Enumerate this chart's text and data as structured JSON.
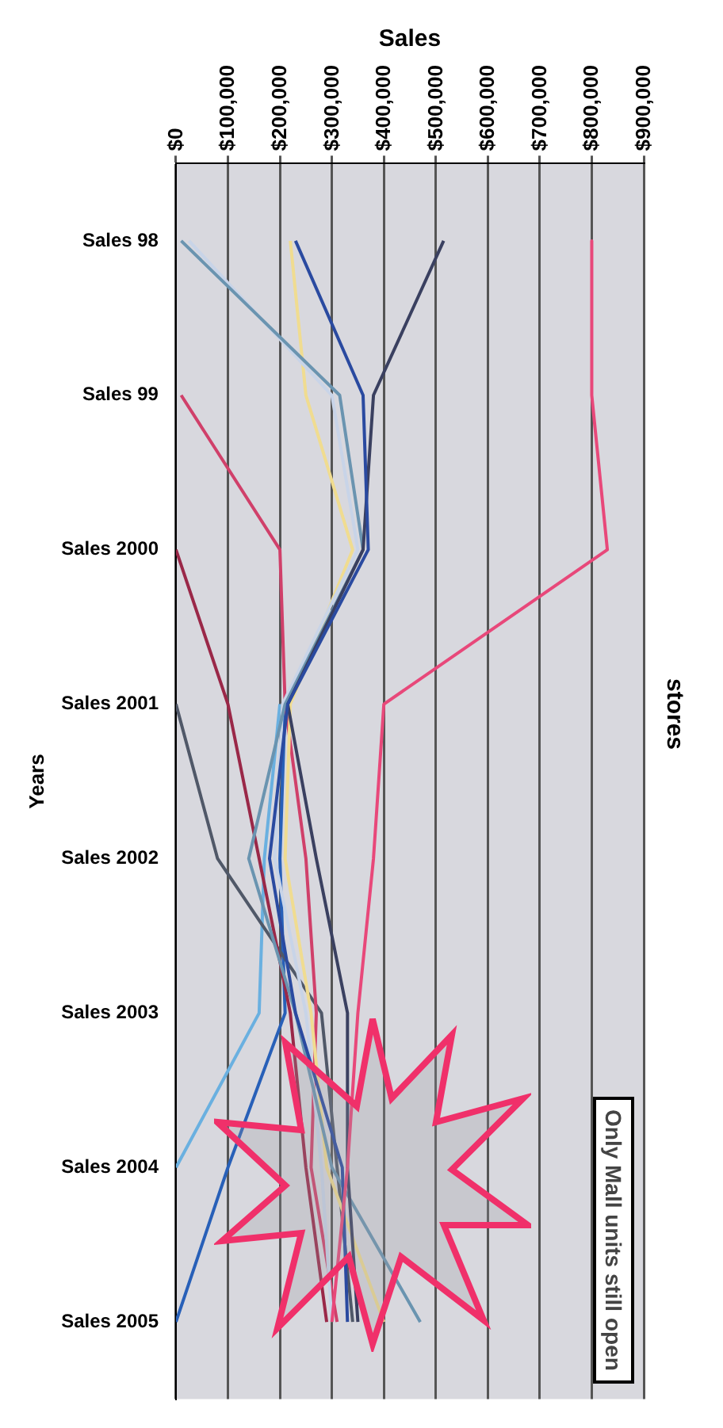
{
  "chart_data": {
    "type": "line",
    "title": "stores",
    "xlabel": "Sales",
    "ylabel": "Years",
    "orientation": "horizontal",
    "grid": "x",
    "legend": false,
    "categories": [
      "Sales 98",
      "Sales 99",
      "Sales 2000",
      "Sales 2001",
      "Sales 2002",
      "Sales 2003",
      "Sales 2004",
      "Sales 2005"
    ],
    "xlim": [
      0,
      900000
    ],
    "xticks": [
      {
        "value": 0,
        "label": "$0"
      },
      {
        "value": 100000,
        "label": "$100,000"
      },
      {
        "value": 200000,
        "label": "$200,000"
      },
      {
        "value": 300000,
        "label": "$300,000"
      },
      {
        "value": 400000,
        "label": "$400,000"
      },
      {
        "value": 500000,
        "label": "$500,000"
      },
      {
        "value": 600000,
        "label": "$600,000"
      },
      {
        "value": 700000,
        "label": "$700,000"
      },
      {
        "value": 800000,
        "label": "$800,000"
      },
      {
        "value": 900000,
        "label": "$900,000"
      }
    ],
    "annotations": [
      "Only Mall units still open"
    ],
    "series": [
      {
        "color": "#e8487a",
        "values": [
          800000,
          800000,
          830000,
          400000,
          380000,
          350000,
          330000,
          300000
        ]
      },
      {
        "color": "#2a4aa0",
        "values": [
          230000,
          360000,
          370000,
          215000,
          180000,
          230000,
          320000,
          330000
        ]
      },
      {
        "color": "#3a4060",
        "values": [
          515000,
          380000,
          360000,
          215000,
          270000,
          330000,
          330000,
          350000
        ]
      },
      {
        "color": "#6a94b0",
        "values": [
          10000,
          315000,
          360000,
          210000,
          140000,
          230000,
          300000,
          470000
        ]
      },
      {
        "color": "#c8d4e8",
        "values": [
          25000,
          300000,
          350000,
          205000,
          190000,
          250000,
          280000,
          300000
        ]
      },
      {
        "color": "#f0dc90",
        "values": [
          220000,
          250000,
          340000,
          220000,
          210000,
          260000,
          290000,
          400000
        ]
      },
      {
        "color": "#d0406a",
        "values": [
          null,
          10000,
          200000,
          210000,
          250000,
          270000,
          260000,
          310000
        ]
      },
      {
        "color": "#9a2848",
        "values": [
          null,
          null,
          0,
          100000,
          160000,
          220000,
          250000,
          290000
        ]
      },
      {
        "color": "#505868",
        "values": [
          null,
          null,
          null,
          0,
          80000,
          280000,
          310000,
          340000
        ]
      },
      {
        "color": "#6ab0e0",
        "values": [
          null,
          null,
          null,
          200000,
          170000,
          160000,
          0,
          null
        ]
      },
      {
        "color": "#2860b8",
        "values": [
          null,
          null,
          null,
          210000,
          200000,
          210000,
          100000,
          0
        ]
      }
    ]
  }
}
